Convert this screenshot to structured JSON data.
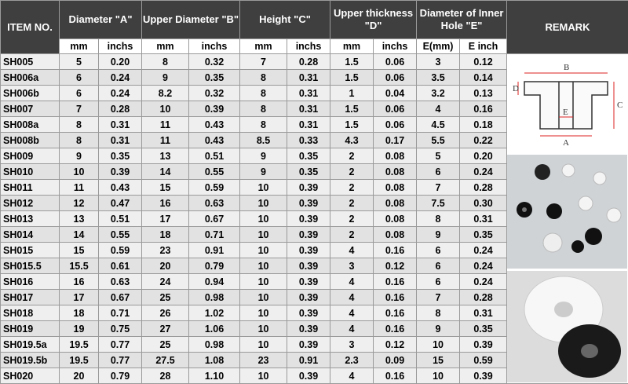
{
  "header": [
    "ITEM NO.",
    "Diameter \"A\"",
    "Upper Diameter \"B\"",
    "Height \"C\"",
    "Upper thickness \"D\"",
    "Diameter of Inner Hole \"E\"",
    "REMARK"
  ],
  "units": [
    "mm",
    "inchs",
    "mm",
    "inchs",
    "mm",
    "inchs",
    "mm",
    "inchs",
    "E(mm)",
    "E  inch"
  ],
  "rows": [
    [
      "SH005",
      "5",
      "0.20",
      "8",
      "0.32",
      "7",
      "0.28",
      "1.5",
      "0.06",
      "3",
      "0.12"
    ],
    [
      "SH006a",
      "6",
      "0.24",
      "9",
      "0.35",
      "8",
      "0.31",
      "1.5",
      "0.06",
      "3.5",
      "0.14"
    ],
    [
      "SH006b",
      "6",
      "0.24",
      "8.2",
      "0.32",
      "8",
      "0.31",
      "1",
      "0.04",
      "3.2",
      "0.13"
    ],
    [
      "SH007",
      "7",
      "0.28",
      "10",
      "0.39",
      "8",
      "0.31",
      "1.5",
      "0.06",
      "4",
      "0.16"
    ],
    [
      "SH008a",
      "8",
      "0.31",
      "11",
      "0.43",
      "8",
      "0.31",
      "1.5",
      "0.06",
      "4.5",
      "0.18"
    ],
    [
      "SH008b",
      "8",
      "0.31",
      "11",
      "0.43",
      "8.5",
      "0.33",
      "4.3",
      "0.17",
      "5.5",
      "0.22"
    ],
    [
      "SH009",
      "9",
      "0.35",
      "13",
      "0.51",
      "9",
      "0.35",
      "2",
      "0.08",
      "5",
      "0.20"
    ],
    [
      "SH010",
      "10",
      "0.39",
      "14",
      "0.55",
      "9",
      "0.35",
      "2",
      "0.08",
      "6",
      "0.24"
    ],
    [
      "SH011",
      "11",
      "0.43",
      "15",
      "0.59",
      "10",
      "0.39",
      "2",
      "0.08",
      "7",
      "0.28"
    ],
    [
      "SH012",
      "12",
      "0.47",
      "16",
      "0.63",
      "10",
      "0.39",
      "2",
      "0.08",
      "7.5",
      "0.30"
    ],
    [
      "SH013",
      "13",
      "0.51",
      "17",
      "0.67",
      "10",
      "0.39",
      "2",
      "0.08",
      "8",
      "0.31"
    ],
    [
      "SH014",
      "14",
      "0.55",
      "18",
      "0.71",
      "10",
      "0.39",
      "2",
      "0.08",
      "9",
      "0.35"
    ],
    [
      "SH015",
      "15",
      "0.59",
      "23",
      "0.91",
      "10",
      "0.39",
      "4",
      "0.16",
      "6",
      "0.24"
    ],
    [
      "SH015.5",
      "15.5",
      "0.61",
      "20",
      "0.79",
      "10",
      "0.39",
      "3",
      "0.12",
      "6",
      "0.24"
    ],
    [
      "SH016",
      "16",
      "0.63",
      "24",
      "0.94",
      "10",
      "0.39",
      "4",
      "0.16",
      "6",
      "0.24"
    ],
    [
      "SH017",
      "17",
      "0.67",
      "25",
      "0.98",
      "10",
      "0.39",
      "4",
      "0.16",
      "7",
      "0.28"
    ],
    [
      "SH018",
      "18",
      "0.71",
      "26",
      "1.02",
      "10",
      "0.39",
      "4",
      "0.16",
      "8",
      "0.31"
    ],
    [
      "SH019",
      "19",
      "0.75",
      "27",
      "1.06",
      "10",
      "0.39",
      "4",
      "0.16",
      "9",
      "0.35"
    ],
    [
      "SH019.5a",
      "19.5",
      "0.77",
      "25",
      "0.98",
      "10",
      "0.39",
      "3",
      "0.12",
      "10",
      "0.39"
    ],
    [
      "SH019.5b",
      "19.5",
      "0.77",
      "27.5",
      "1.08",
      "23",
      "0.91",
      "2.3",
      "0.09",
      "15",
      "0.59"
    ],
    [
      "SH020",
      "20",
      "0.79",
      "28",
      "1.10",
      "10",
      "0.39",
      "4",
      "0.16",
      "10",
      "0.39"
    ]
  ],
  "diagram_labels": [
    "D",
    "B",
    "C",
    "E",
    "A"
  ]
}
